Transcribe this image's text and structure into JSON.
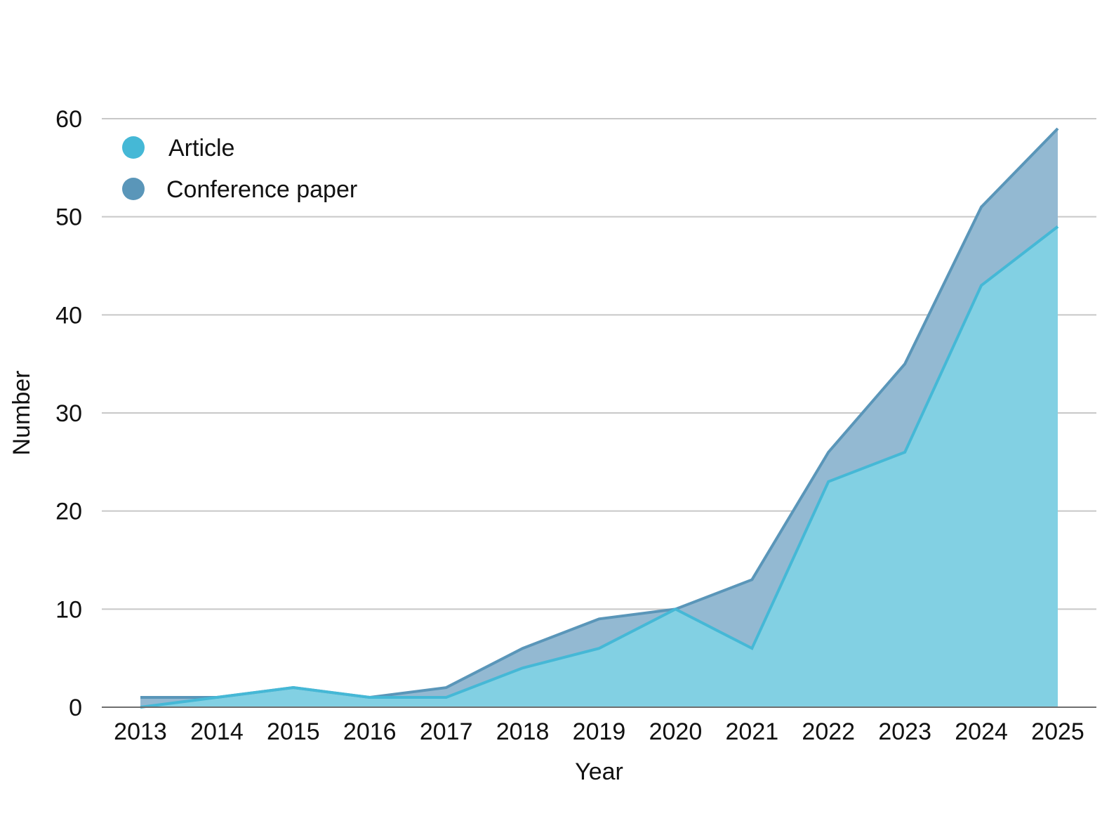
{
  "chart_data": {
    "type": "area",
    "stacked": true,
    "x": [
      "2013",
      "2014",
      "2015",
      "2016",
      "2017",
      "2018",
      "2019",
      "2020",
      "2021",
      "2022",
      "2023",
      "2024",
      "2025"
    ],
    "series": [
      {
        "name": "Article",
        "values": [
          0,
          1,
          2,
          1,
          1,
          4,
          6,
          10,
          6,
          23,
          26,
          43,
          49
        ],
        "color": "#45b8d6",
        "fill": "#82d0e3"
      },
      {
        "name": "Conference paper",
        "values": [
          1,
          0,
          0,
          0,
          1,
          2,
          3,
          0,
          7,
          3,
          9,
          8,
          10
        ],
        "color": "#5a96b9",
        "fill": "#93b9d2"
      }
    ],
    "totals": [
      1,
      1,
      2,
      1,
      2,
      6,
      9,
      10,
      13,
      26,
      35,
      51,
      59
    ],
    "xlabel": "Year",
    "ylabel": "Number",
    "ylim": [
      0,
      60
    ],
    "yticks": [
      0,
      10,
      20,
      30,
      40,
      50,
      60
    ],
    "grid": true,
    "legend_position": "top-left"
  }
}
